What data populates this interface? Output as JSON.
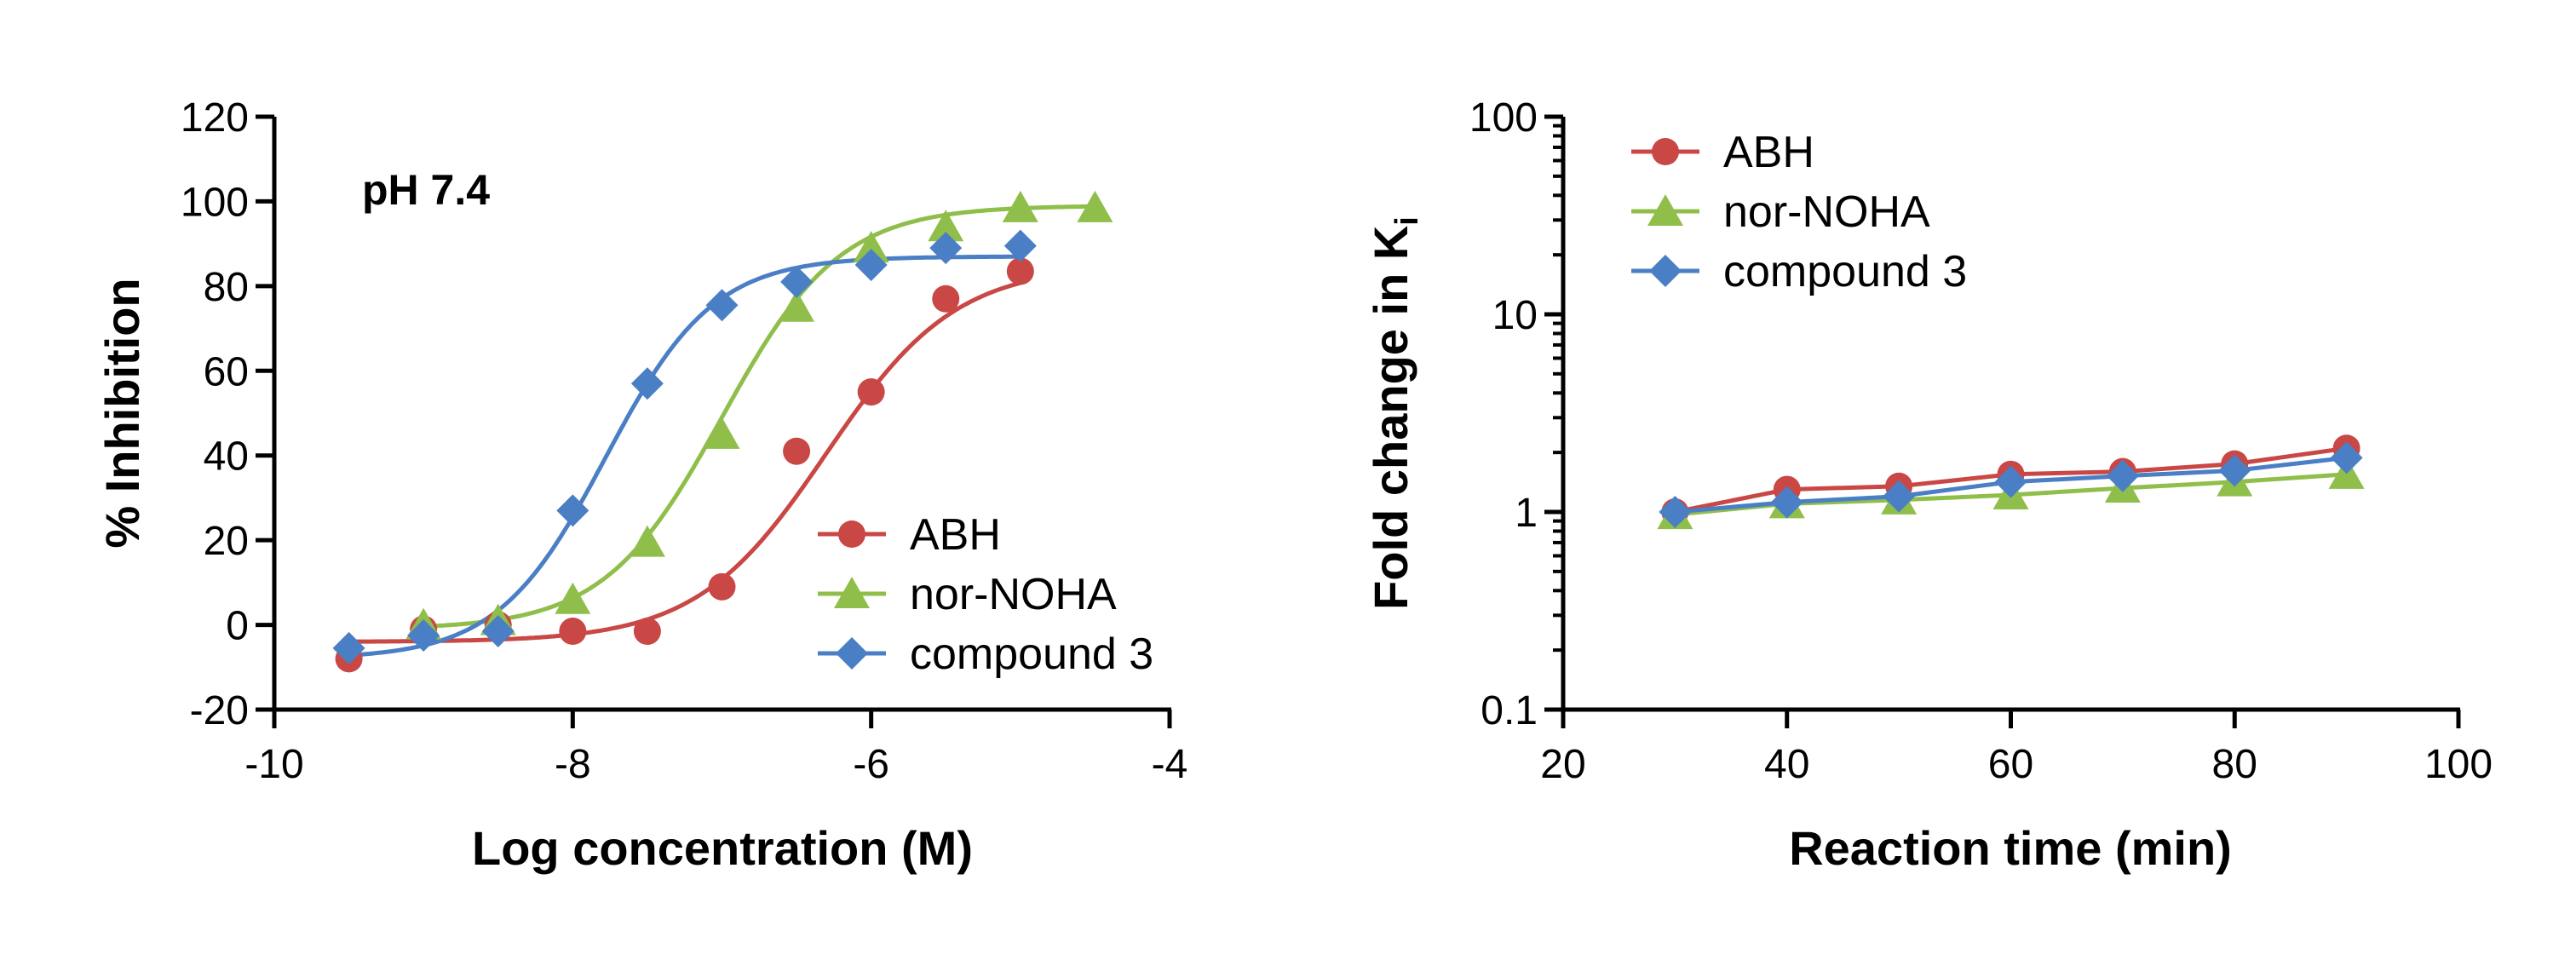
{
  "colors": {
    "ABH": "#c94745",
    "nor-NOHA": "#8fbf4a",
    "compound 3": "#4a7fc5",
    "axis": "#000000"
  },
  "chart_data": [
    {
      "type": "scatter",
      "fit": "sigmoidal dose-response curve",
      "annotation": "pH 7.4",
      "xlabel": "Log concentration (M)",
      "ylabel": "% Inhibition",
      "xlim": [
        -10,
        -4
      ],
      "ylim": [
        -20,
        120
      ],
      "x_ticks": [
        -10,
        -8,
        -6,
        -4
      ],
      "y_ticks": [
        -20,
        0,
        20,
        40,
        60,
        80,
        100,
        120
      ],
      "legend_position": "lower-right",
      "series": [
        {
          "name": "ABH",
          "marker": "circle",
          "points": [
            [
              -9.5,
              -8
            ],
            [
              -9.0,
              -1
            ],
            [
              -8.5,
              0
            ],
            [
              -8.0,
              -1.5
            ],
            [
              -7.5,
              -1.5
            ],
            [
              -7.0,
              9
            ],
            [
              -6.5,
              41
            ],
            [
              -6.0,
              55
            ],
            [
              -5.5,
              77
            ],
            [
              -5.0,
              83.5
            ]
          ],
          "fit_params": {
            "bottom": -4,
            "top": 85,
            "logIC50": -6.3,
            "hill": 1.0
          }
        },
        {
          "name": "nor-NOHA",
          "marker": "triangle",
          "points": [
            [
              -9.0,
              0
            ],
            [
              -8.5,
              1
            ],
            [
              -8.0,
              6
            ],
            [
              -7.5,
              19.5
            ],
            [
              -7.0,
              45
            ],
            [
              -6.5,
              75
            ],
            [
              -6.0,
              89
            ],
            [
              -5.5,
              94
            ],
            [
              -5.0,
              98.5
            ],
            [
              -4.5,
              98.5
            ]
          ],
          "fit_params": {
            "bottom": -1,
            "top": 99,
            "logIC50": -7.0,
            "hill": 1.1
          }
        },
        {
          "name": "compound 3",
          "marker": "diamond",
          "points": [
            [
              -9.5,
              -5.5
            ],
            [
              -9.0,
              -2.5
            ],
            [
              -8.5,
              -1.5
            ],
            [
              -8.0,
              27
            ],
            [
              -7.5,
              57
            ],
            [
              -7.0,
              75.5
            ],
            [
              -6.5,
              81
            ],
            [
              -6.0,
              85
            ],
            [
              -5.5,
              89
            ],
            [
              -5.0,
              89.5
            ]
          ],
          "fit_params": {
            "bottom": -8,
            "top": 87,
            "logIC50": -7.78,
            "hill": 1.2
          }
        }
      ]
    },
    {
      "type": "line",
      "xlabel": "Reaction time (min)",
      "ylabel": "Fold change in K",
      "ylabel_subscript": "i",
      "xlim": [
        20,
        100
      ],
      "ylim": [
        0.1,
        100
      ],
      "y_scale": "log",
      "x_ticks": [
        20,
        40,
        60,
        80,
        100
      ],
      "y_ticks": [
        0.1,
        1,
        10,
        100
      ],
      "y_tick_labels": [
        "0.1",
        "1",
        "10",
        "100"
      ],
      "legend_position": "top-left",
      "series": [
        {
          "name": "ABH",
          "marker": "circle",
          "x": [
            30,
            40,
            50,
            60,
            70,
            80,
            90
          ],
          "y": [
            1.0,
            1.3,
            1.35,
            1.55,
            1.6,
            1.75,
            2.1
          ]
        },
        {
          "name": "nor-NOHA",
          "marker": "triangle",
          "x": [
            30,
            40,
            50,
            60,
            70,
            80,
            90
          ],
          "y": [
            0.97,
            1.1,
            1.15,
            1.22,
            1.32,
            1.42,
            1.55
          ]
        },
        {
          "name": "compound 3",
          "marker": "diamond",
          "x": [
            30,
            40,
            50,
            60,
            70,
            80,
            90
          ],
          "y": [
            1.0,
            1.12,
            1.2,
            1.42,
            1.52,
            1.62,
            1.88
          ]
        }
      ]
    }
  ]
}
